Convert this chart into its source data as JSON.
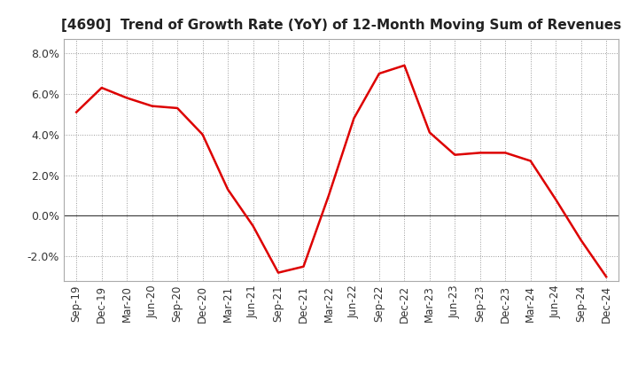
{
  "title": "[4690]  Trend of Growth Rate (YoY) of 12-Month Moving Sum of Revenues",
  "line_color": "#dd0000",
  "line_width": 1.8,
  "background_color": "#ffffff",
  "grid_color": "#999999",
  "ylim": [
    -0.032,
    0.087
  ],
  "yticks": [
    -0.02,
    0.0,
    0.02,
    0.04,
    0.06,
    0.08
  ],
  "x_labels": [
    "Sep-19",
    "Dec-19",
    "Mar-20",
    "Jun-20",
    "Sep-20",
    "Dec-20",
    "Mar-21",
    "Jun-21",
    "Sep-21",
    "Dec-21",
    "Mar-22",
    "Jun-22",
    "Sep-22",
    "Dec-22",
    "Mar-23",
    "Jun-23",
    "Sep-23",
    "Dec-23",
    "Mar-24",
    "Jun-24",
    "Sep-24",
    "Dec-24"
  ],
  "data": [
    [
      "Sep-19",
      0.051
    ],
    [
      "Dec-19",
      0.063
    ],
    [
      "Mar-20",
      0.058
    ],
    [
      "Jun-20",
      0.054
    ],
    [
      "Sep-20",
      0.053
    ],
    [
      "Dec-20",
      0.04
    ],
    [
      "Mar-21",
      0.013
    ],
    [
      "Jun-21",
      -0.005
    ],
    [
      "Sep-21",
      -0.028
    ],
    [
      "Dec-21",
      -0.025
    ],
    [
      "Mar-22",
      0.01
    ],
    [
      "Jun-22",
      0.048
    ],
    [
      "Sep-22",
      0.07
    ],
    [
      "Dec-22",
      0.074
    ],
    [
      "Mar-23",
      0.041
    ],
    [
      "Jun-23",
      0.03
    ],
    [
      "Sep-23",
      0.031
    ],
    [
      "Dec-23",
      0.031
    ],
    [
      "Mar-24",
      0.027
    ],
    [
      "Jun-24",
      0.008
    ],
    [
      "Sep-24",
      -0.012
    ],
    [
      "Dec-24",
      -0.03
    ]
  ]
}
